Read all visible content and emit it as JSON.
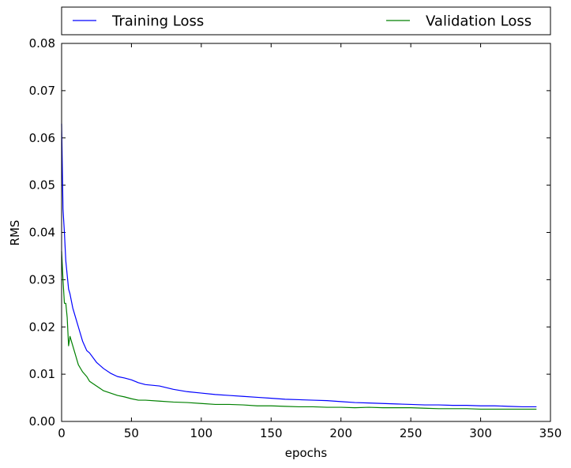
{
  "chart_data": {
    "type": "line",
    "title": "",
    "xlabel": "epochs",
    "ylabel": "RMS",
    "xlim": [
      0,
      350
    ],
    "ylim": [
      0,
      0.08
    ],
    "x_ticks": [
      0,
      50,
      100,
      150,
      200,
      250,
      300,
      350
    ],
    "x_tick_labels": [
      "0",
      "50",
      "100",
      "150",
      "200",
      "250",
      "300",
      "350"
    ],
    "y_ticks": [
      0.0,
      0.01,
      0.02,
      0.03,
      0.04,
      0.05,
      0.06,
      0.07,
      0.08
    ],
    "y_tick_labels": [
      "0.00",
      "0.01",
      "0.02",
      "0.03",
      "0.04",
      "0.05",
      "0.06",
      "0.07",
      "0.08"
    ],
    "grid": false,
    "legend_position": "top, above plot, spanning full width",
    "x": [
      0,
      1,
      2,
      3,
      4,
      5,
      6,
      8,
      10,
      12,
      15,
      18,
      20,
      25,
      30,
      35,
      40,
      45,
      50,
      55,
      60,
      70,
      80,
      90,
      100,
      110,
      120,
      130,
      140,
      150,
      160,
      170,
      180,
      190,
      200,
      210,
      220,
      230,
      240,
      250,
      260,
      270,
      280,
      290,
      300,
      310,
      320,
      330,
      340
    ],
    "series": [
      {
        "name": "Training Loss",
        "color": "#0000ff",
        "values": [
          0.063,
          0.045,
          0.04,
          0.034,
          0.031,
          0.028,
          0.027,
          0.024,
          0.022,
          0.02,
          0.017,
          0.015,
          0.0145,
          0.0125,
          0.0112,
          0.0102,
          0.0095,
          0.0092,
          0.0088,
          0.0082,
          0.0078,
          0.0075,
          0.0068,
          0.0063,
          0.006,
          0.0057,
          0.0055,
          0.0053,
          0.0051,
          0.0049,
          0.0047,
          0.0046,
          0.0045,
          0.0044,
          0.0042,
          0.004,
          0.0039,
          0.0038,
          0.0037,
          0.0036,
          0.0035,
          0.0035,
          0.0034,
          0.0034,
          0.0033,
          0.0033,
          0.0032,
          0.0031,
          0.0031
        ]
      },
      {
        "name": "Validation Loss",
        "color": "#008000",
        "values": [
          0.036,
          0.03,
          0.025,
          0.025,
          0.022,
          0.016,
          0.018,
          0.016,
          0.014,
          0.012,
          0.0105,
          0.0095,
          0.0085,
          0.0075,
          0.0065,
          0.006,
          0.0055,
          0.0052,
          0.0048,
          0.0045,
          0.0045,
          0.0043,
          0.0041,
          0.004,
          0.0038,
          0.0036,
          0.0036,
          0.0035,
          0.0033,
          0.0033,
          0.0032,
          0.0031,
          0.0031,
          0.003,
          0.003,
          0.0029,
          0.003,
          0.0029,
          0.0029,
          0.0029,
          0.0028,
          0.0027,
          0.0027,
          0.0027,
          0.0026,
          0.0026,
          0.0026,
          0.0026,
          0.0026
        ]
      }
    ]
  }
}
